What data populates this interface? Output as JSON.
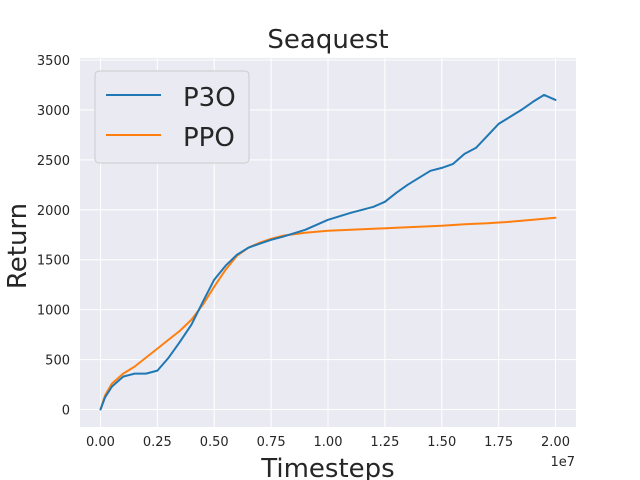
{
  "chart_data": {
    "type": "line",
    "title": "Seaquest",
    "xlabel": "Timesteps",
    "ylabel": "Return",
    "x_offset_label": "1e7",
    "xlim": [
      -0.09,
      2.09
    ],
    "ylim": [
      -175,
      3520
    ],
    "x_ticks": [
      0.0,
      0.25,
      0.5,
      0.75,
      1.0,
      1.25,
      1.5,
      1.75,
      2.0
    ],
    "x_tick_labels": [
      "0.00",
      "0.25",
      "0.50",
      "0.75",
      "1.00",
      "1.25",
      "1.50",
      "1.75",
      "2.00"
    ],
    "y_ticks": [
      0,
      500,
      1000,
      1500,
      2000,
      2500,
      3000,
      3500
    ],
    "y_tick_labels": [
      "0",
      "500",
      "1000",
      "1500",
      "2000",
      "2500",
      "3000",
      "3500"
    ],
    "grid": true,
    "legend_position": "top-left",
    "series": [
      {
        "name": "P3O",
        "color": "#1f77b4",
        "x": [
          0.0,
          0.02,
          0.05,
          0.1,
          0.15,
          0.2,
          0.25,
          0.3,
          0.35,
          0.4,
          0.45,
          0.5,
          0.55,
          0.6,
          0.65,
          0.7,
          0.75,
          0.8,
          0.9,
          1.0,
          1.1,
          1.2,
          1.25,
          1.3,
          1.35,
          1.4,
          1.45,
          1.5,
          1.55,
          1.6,
          1.65,
          1.7,
          1.75,
          1.8,
          1.85,
          1.9,
          1.95,
          2.0
        ],
        "y": [
          0,
          120,
          230,
          330,
          360,
          360,
          390,
          520,
          680,
          850,
          1080,
          1300,
          1440,
          1550,
          1620,
          1660,
          1700,
          1730,
          1800,
          1900,
          1970,
          2030,
          2080,
          2170,
          2250,
          2320,
          2390,
          2420,
          2460,
          2560,
          2620,
          2740,
          2860,
          2930,
          3000,
          3080,
          3150,
          3100
        ]
      },
      {
        "name": "PPO",
        "color": "#ff7f0e",
        "x": [
          0.0,
          0.02,
          0.05,
          0.1,
          0.15,
          0.2,
          0.25,
          0.3,
          0.35,
          0.4,
          0.45,
          0.5,
          0.55,
          0.6,
          0.65,
          0.7,
          0.75,
          0.8,
          0.9,
          1.0,
          1.1,
          1.2,
          1.3,
          1.4,
          1.5,
          1.6,
          1.7,
          1.8,
          1.9,
          2.0
        ],
        "y": [
          0,
          140,
          260,
          360,
          430,
          520,
          610,
          700,
          790,
          900,
          1050,
          1230,
          1400,
          1540,
          1620,
          1670,
          1710,
          1740,
          1770,
          1790,
          1800,
          1810,
          1820,
          1830,
          1840,
          1855,
          1865,
          1880,
          1900,
          1920
        ]
      }
    ]
  }
}
